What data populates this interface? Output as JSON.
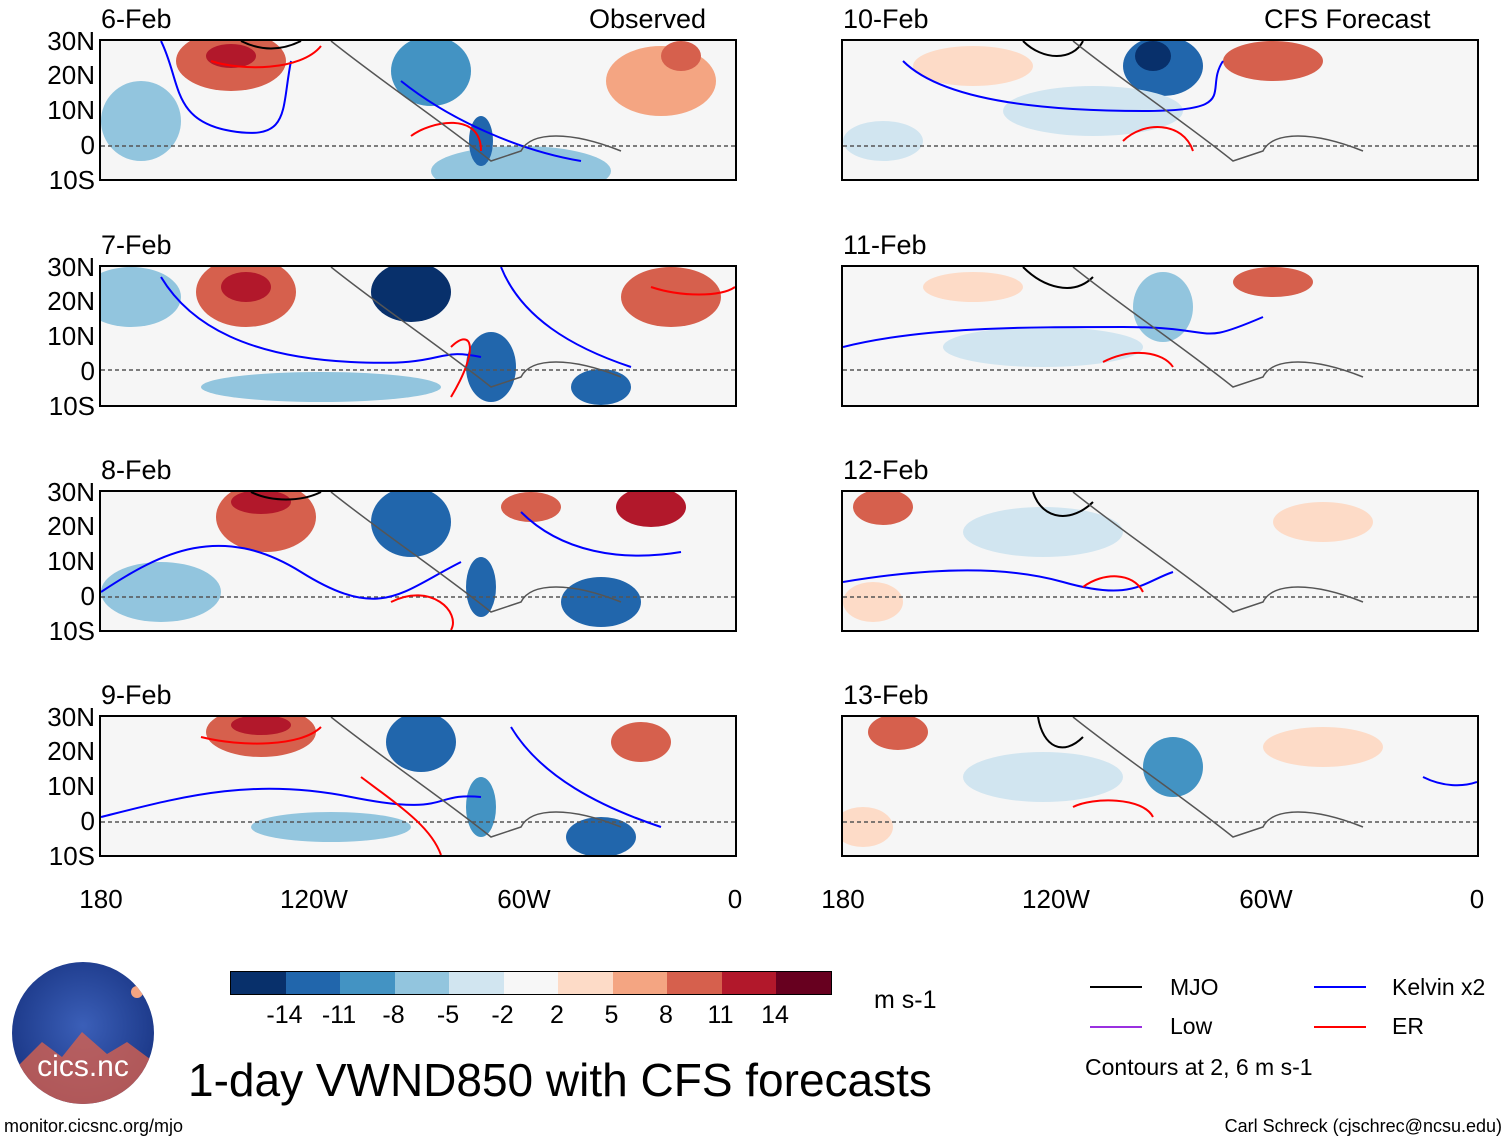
{
  "panels_left": [
    {
      "date": "6-Feb",
      "label": "Observed"
    },
    {
      "date": "7-Feb",
      "label": ""
    },
    {
      "date": "8-Feb",
      "label": ""
    },
    {
      "date": "9-Feb",
      "label": ""
    }
  ],
  "panels_right": [
    {
      "date": "10-Feb",
      "label": "CFS Forecast"
    },
    {
      "date": "11-Feb",
      "label": ""
    },
    {
      "date": "12-Feb",
      "label": ""
    },
    {
      "date": "13-Feb",
      "label": ""
    }
  ],
  "lat_labels": [
    "30N",
    "20N",
    "10N",
    "0",
    "10S"
  ],
  "lon_labels": [
    "180",
    "120W",
    "60W",
    "0"
  ],
  "colorbar": {
    "labels": [
      "-14",
      "-11",
      "-8",
      "-5",
      "-2",
      "2",
      "5",
      "8",
      "11",
      "14"
    ],
    "units": "m s-1",
    "colors": [
      "#08306b",
      "#2166ac",
      "#4393c3",
      "#92c5de",
      "#d1e5f0",
      "#f7f7f7",
      "#fddbc7",
      "#f4a582",
      "#d6604d",
      "#b2182b",
      "#67001f"
    ]
  },
  "title": "1-day VWND850 with CFS forecasts",
  "legend": {
    "items": [
      {
        "name": "MJO",
        "color": "#000000"
      },
      {
        "name": "Kelvin x2",
        "color": "#0000ff"
      },
      {
        "name": "Low",
        "color": "#9a30e0"
      },
      {
        "name": "ER",
        "color": "#ff0000"
      }
    ],
    "note": "Contours at 2, 6 m s-1"
  },
  "logo_text": "cics.nc",
  "footer_left": "monitor.cicsnc.org/mjo",
  "footer_right": "Carl Schreck (cjschrec@ncsu.edu)"
}
